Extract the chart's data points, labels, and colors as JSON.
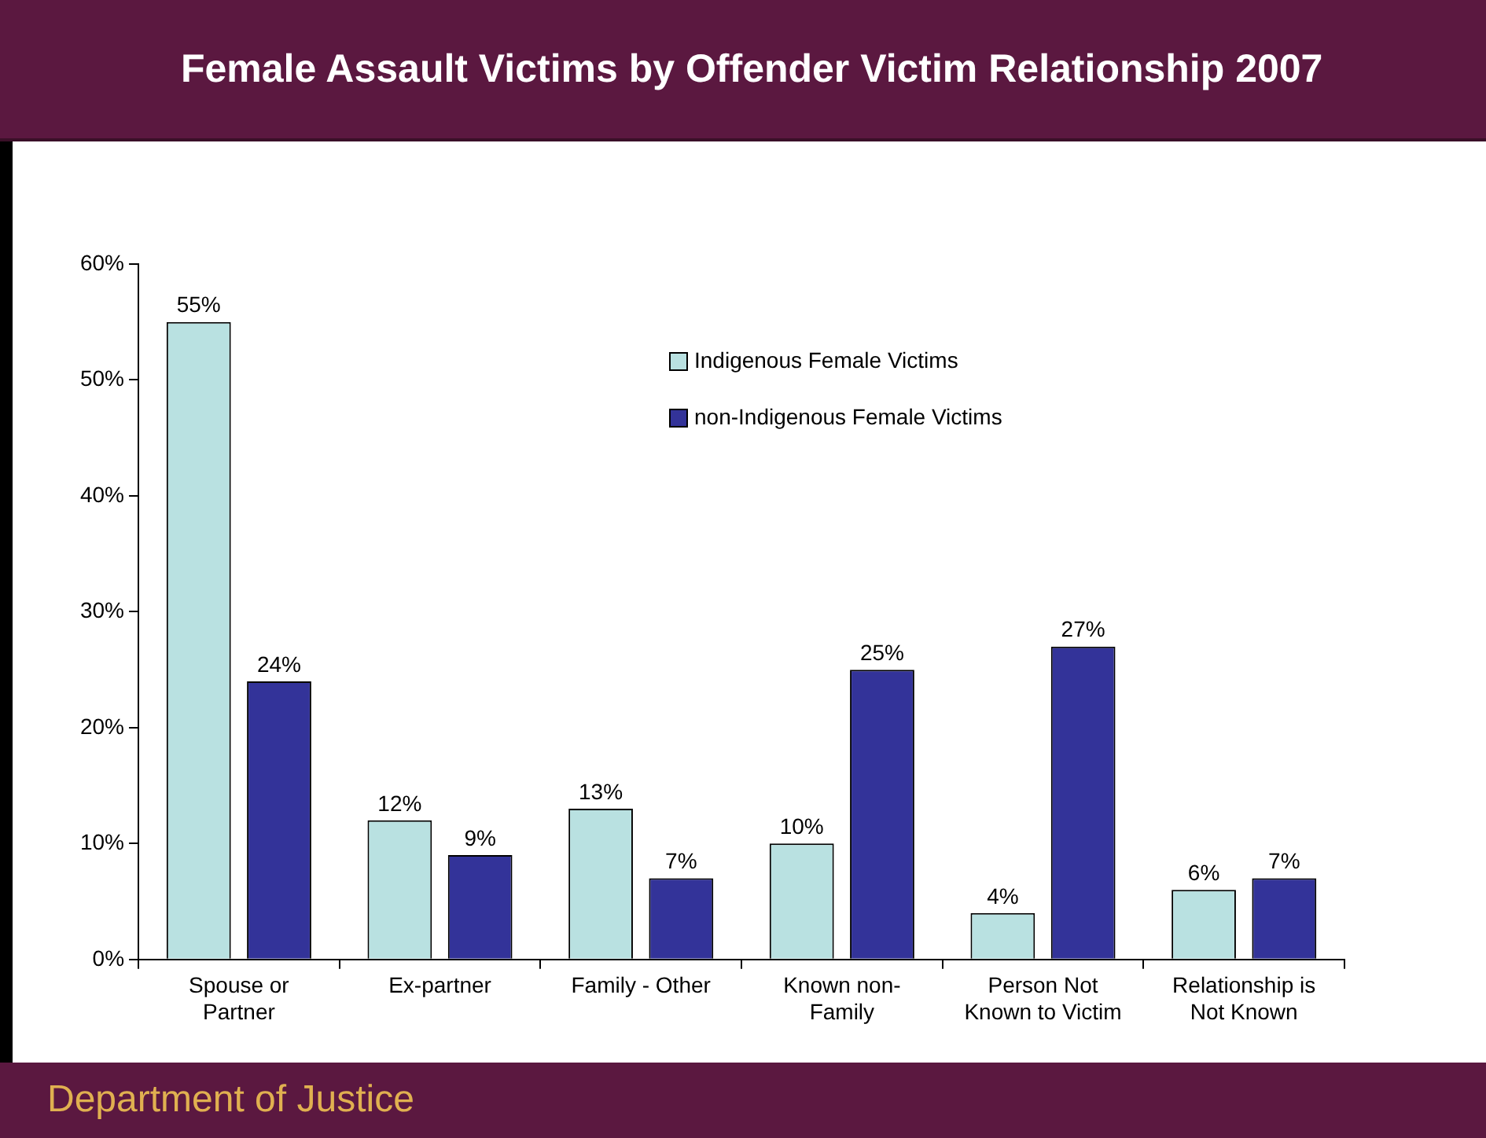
{
  "chart_data": {
    "type": "bar",
    "title": "Female Assault Victims by Offender Victim Relationship 2007",
    "categories": [
      "Spouse or Partner",
      "Ex-partner",
      "Family - Other",
      "Known non-Family",
      "Person Not Known to Victim",
      "Relationship is Not Known"
    ],
    "series": [
      {
        "name": "Indigenous Female Victims",
        "color": "#b9e1e1",
        "values": [
          55,
          12,
          13,
          10,
          4,
          6
        ],
        "value_labels": [
          "55%",
          "12%",
          "13%",
          "10%",
          "4%",
          "6%"
        ]
      },
      {
        "name": "non-Indigenous Female Victims",
        "color": "#333399",
        "values": [
          24,
          9,
          7,
          25,
          27,
          7
        ],
        "value_labels": [
          "24%",
          "9%",
          "7%",
          "25%",
          "27%",
          "7%"
        ]
      }
    ],
    "ylim": [
      0,
      60
    ],
    "yticks": [
      {
        "value": 0,
        "label": "0%"
      },
      {
        "value": 10,
        "label": "10%"
      },
      {
        "value": 20,
        "label": "20%"
      },
      {
        "value": 30,
        "label": "30%"
      },
      {
        "value": 40,
        "label": "40%"
      },
      {
        "value": 50,
        "label": "50%"
      },
      {
        "value": 60,
        "label": "60%"
      }
    ],
    "legend": "top right",
    "annotations": [
      "Department of Justice"
    ]
  }
}
